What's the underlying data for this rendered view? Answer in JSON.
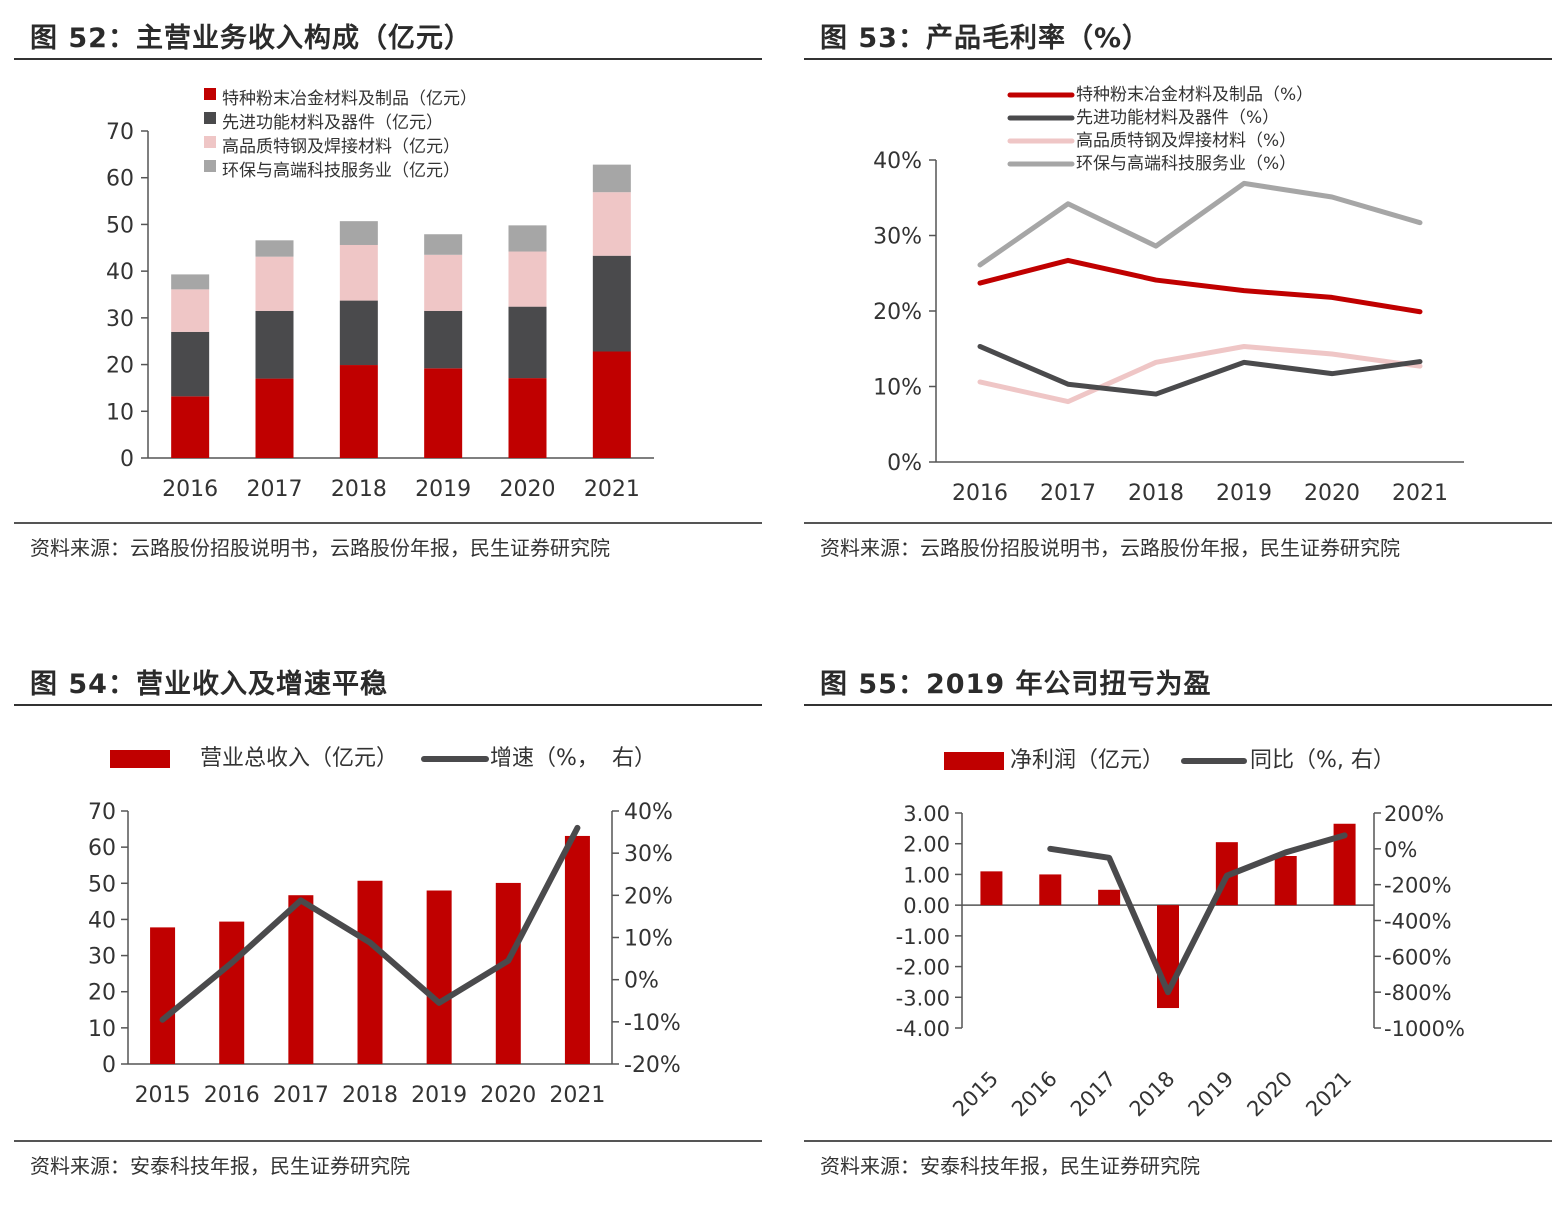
{
  "colors": {
    "red": "#c00000",
    "dark": "#4a4a4c",
    "pink": "#efc6c6",
    "gray": "#a6a6a6",
    "axis": "#555555"
  },
  "panels": {
    "p52": {
      "title": "图 52：主营业务收入构成（亿元）",
      "source": "资料来源：云路股份招股说明书，云路股份年报，民生证券研究院"
    },
    "p53": {
      "title": "图 53：产品毛利率（%）",
      "source": "资料来源：云路股份招股说明书，云路股份年报，民生证券研究院"
    },
    "p54": {
      "title": "图 54：营业收入及增速平稳",
      "source": "资料来源：安泰科技年报，民生证券研究院"
    },
    "p55": {
      "title": "图 55：2019 年公司扭亏为盈",
      "source": "资料来源：安泰科技年报，民生证券研究院"
    }
  },
  "chart_data": [
    {
      "id": "fig52",
      "type": "bar",
      "stacked": true,
      "categories": [
        "2016",
        "2017",
        "2018",
        "2019",
        "2020",
        "2021"
      ],
      "series": [
        {
          "name": "特种粉末冶金材料及制品（亿元）",
          "color": "#c00000",
          "values": [
            13.2,
            17.0,
            19.9,
            19.2,
            17.1,
            22.8
          ]
        },
        {
          "name": "先进功能材料及器件（亿元）",
          "color": "#4a4a4c",
          "values": [
            13.8,
            14.5,
            13.8,
            12.3,
            15.3,
            20.5
          ]
        },
        {
          "name": "高品质特钢及焊接材料（亿元）",
          "color": "#efc6c6",
          "values": [
            9.1,
            11.6,
            11.9,
            12.0,
            11.8,
            13.6
          ]
        },
        {
          "name": "环保与高端科技服务业（亿元）",
          "color": "#a6a6a6",
          "values": [
            3.2,
            3.5,
            5.1,
            4.4,
            5.6,
            5.9
          ]
        }
      ],
      "ylim": [
        0,
        70
      ],
      "yticks": [
        0,
        10,
        20,
        30,
        40,
        50,
        60,
        70
      ],
      "legend": "top-left"
    },
    {
      "id": "fig53",
      "type": "line",
      "categories": [
        "2016",
        "2017",
        "2018",
        "2019",
        "2020",
        "2021"
      ],
      "series": [
        {
          "name": "特种粉末冶金材料及制品（%）",
          "color": "#c00000",
          "values": [
            23.7,
            26.7,
            24.1,
            22.7,
            21.8,
            19.9
          ]
        },
        {
          "name": "先进功能材料及器件（%）",
          "color": "#4a4a4c",
          "values": [
            15.3,
            10.3,
            9.0,
            13.2,
            11.7,
            13.3
          ]
        },
        {
          "name": "高品质特钢及焊接材料（%）",
          "color": "#efc6c6",
          "values": [
            10.6,
            8.0,
            13.2,
            15.3,
            14.3,
            12.7
          ]
        },
        {
          "name": "环保与高端科技服务业（%）",
          "color": "#a6a6a6",
          "values": [
            26.1,
            34.2,
            28.6,
            36.9,
            35.1,
            31.7
          ]
        }
      ],
      "ylim": [
        0,
        40
      ],
      "yticks": [
        "0%",
        "10%",
        "20%",
        "30%",
        "40%"
      ],
      "legend": "top"
    },
    {
      "id": "fig54",
      "type": "bar",
      "categories": [
        "2015",
        "2016",
        "2017",
        "2018",
        "2019",
        "2020",
        "2021"
      ],
      "bar_series": {
        "name": "营业总收入（亿元）",
        "color": "#c00000",
        "values": [
          37.8,
          39.4,
          46.7,
          50.7,
          48.0,
          50.1,
          63.1
        ]
      },
      "line_series": {
        "name": "增速（%，右）",
        "color": "#4a4a4c",
        "values": [
          -9.5,
          4.0,
          18.8,
          8.8,
          -5.5,
          4.5,
          36.0
        ]
      },
      "ylim": [
        0,
        70
      ],
      "yticks": [
        0,
        10,
        20,
        30,
        40,
        50,
        60,
        70
      ],
      "y2lim": [
        -20,
        40
      ],
      "y2ticks": [
        "-20%",
        "-10%",
        "0%",
        "10%",
        "20%",
        "30%",
        "40%"
      ],
      "legend": "top",
      "legend_labels": {
        "bar": "营业总收入（亿元）",
        "line": "增速（%，",
        "line_suffix": "右）"
      }
    },
    {
      "id": "fig55",
      "type": "bar",
      "categories": [
        "2015",
        "2016",
        "2017",
        "2018",
        "2019",
        "2020",
        "2021"
      ],
      "bar_series": {
        "name": "净利润（亿元）",
        "color": "#c00000",
        "values": [
          1.1,
          1.0,
          0.5,
          -3.35,
          2.05,
          1.6,
          2.65
        ]
      },
      "line_series": {
        "name": "同比（%, 右）",
        "color": "#4a4a4c",
        "values": [
          null,
          0,
          -50,
          -800,
          -150,
          -20,
          75
        ]
      },
      "ylim": [
        -4,
        3
      ],
      "yticks": [
        "-4.00",
        "-3.00",
        "-2.00",
        "-1.00",
        "0.00",
        "1.00",
        "2.00",
        "3.00"
      ],
      "y2lim": [
        -1000,
        200
      ],
      "y2ticks": [
        "-1000%",
        "-800%",
        "-600%",
        "-400%",
        "-200%",
        "0%",
        "200%"
      ],
      "legend": "top"
    }
  ]
}
